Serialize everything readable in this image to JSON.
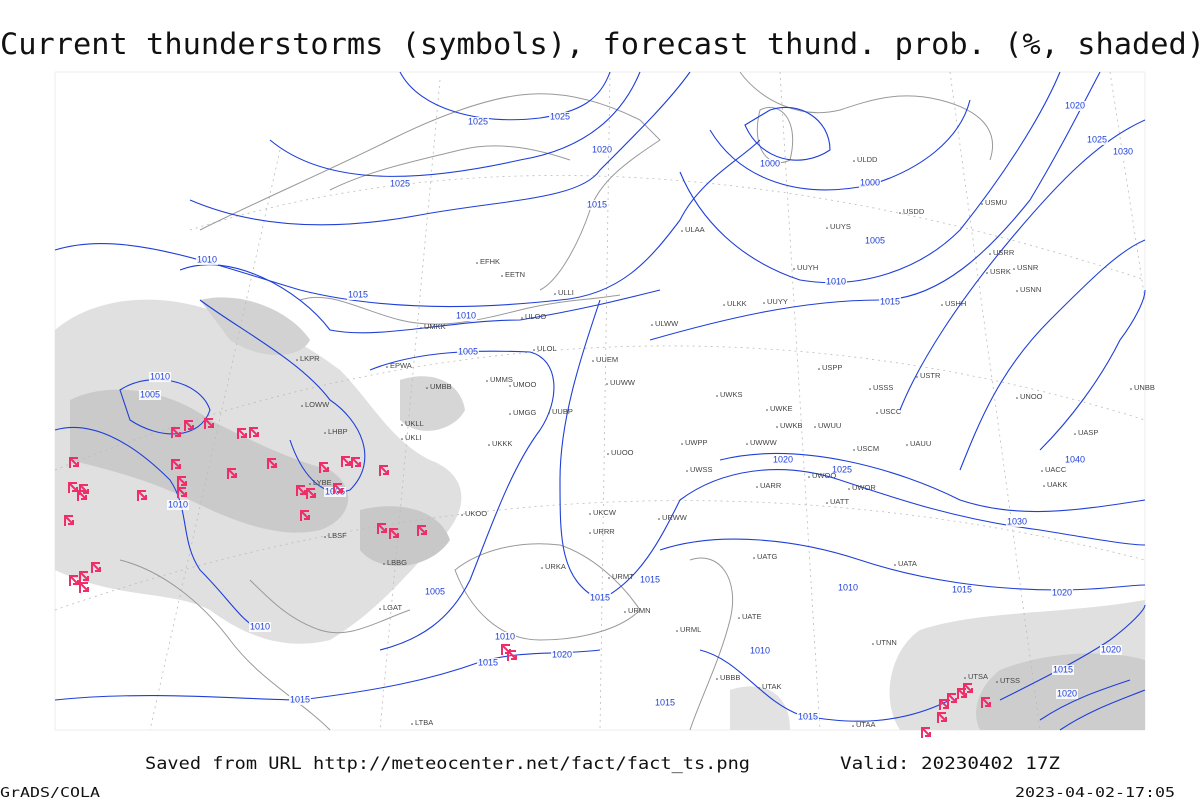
{
  "title": "Current thunderstorms (symbols), forecast thund. prob. (%, shaded)",
  "footer": {
    "source": "Saved from URL http://meteocenter.net/fact/fact_ts.png",
    "valid": "Valid: 20230402 17Z",
    "software": "GrADS/COLA",
    "timestamp": "2023-04-02-17:05"
  },
  "isobar_labels": [
    "1025",
    "1025",
    "1025",
    "1020",
    "1015",
    "1010",
    "1015",
    "1010",
    "1005",
    "1010",
    "1005",
    "1010",
    "1005",
    "1005",
    "1010",
    "1015",
    "1010",
    "1020",
    "1015",
    "1015",
    "1015",
    "1015",
    "1015",
    "1010",
    "1010",
    "1015",
    "1020",
    "1020",
    "1025",
    "1030",
    "1040",
    "1015",
    "1010",
    "1005",
    "1000",
    "1000",
    "1020",
    "1025",
    "1030",
    "1020",
    "1015",
    "1020"
  ],
  "stations": [
    "ULAA",
    "ULLI",
    "ULOO",
    "ULOL",
    "UMKK",
    "EETN",
    "EFHK",
    "ULWW",
    "ULKK",
    "UUYY",
    "UUYH",
    "UUYS",
    "ULDD",
    "UUEM",
    "UUWW",
    "UUBP",
    "UMMS",
    "UMOO",
    "UMGG",
    "UUOO",
    "UWPP",
    "UWKS",
    "UWKE",
    "UWKB",
    "UWUU",
    "UWWW",
    "UWSS",
    "UWOO",
    "UWOR",
    "UATT",
    "UARR",
    "URWW",
    "UKOO",
    "UKKK",
    "URRR",
    "UKCW",
    "URKA",
    "URMT",
    "URMN",
    "UATG",
    "UATE",
    "URML",
    "UBBB",
    "UTAK",
    "UACC",
    "UAKK",
    "UASP",
    "UAUU",
    "USSS",
    "USCC",
    "USCM",
    "USPP",
    "USTR",
    "UNOO",
    "UNBB",
    "USRR",
    "USRK",
    "USNR",
    "USNN",
    "USHH",
    "USDD",
    "USMU",
    "LKPR",
    "EPWA",
    "UMBB",
    "LOWW",
    "LHBP",
    "UKLL",
    "UKLI",
    "LYBE",
    "LBSF",
    "LBBG",
    "LGAT",
    "LTBA",
    "UTSA",
    "UTSS",
    "UTAA",
    "UTNN",
    "UATA"
  ]
}
